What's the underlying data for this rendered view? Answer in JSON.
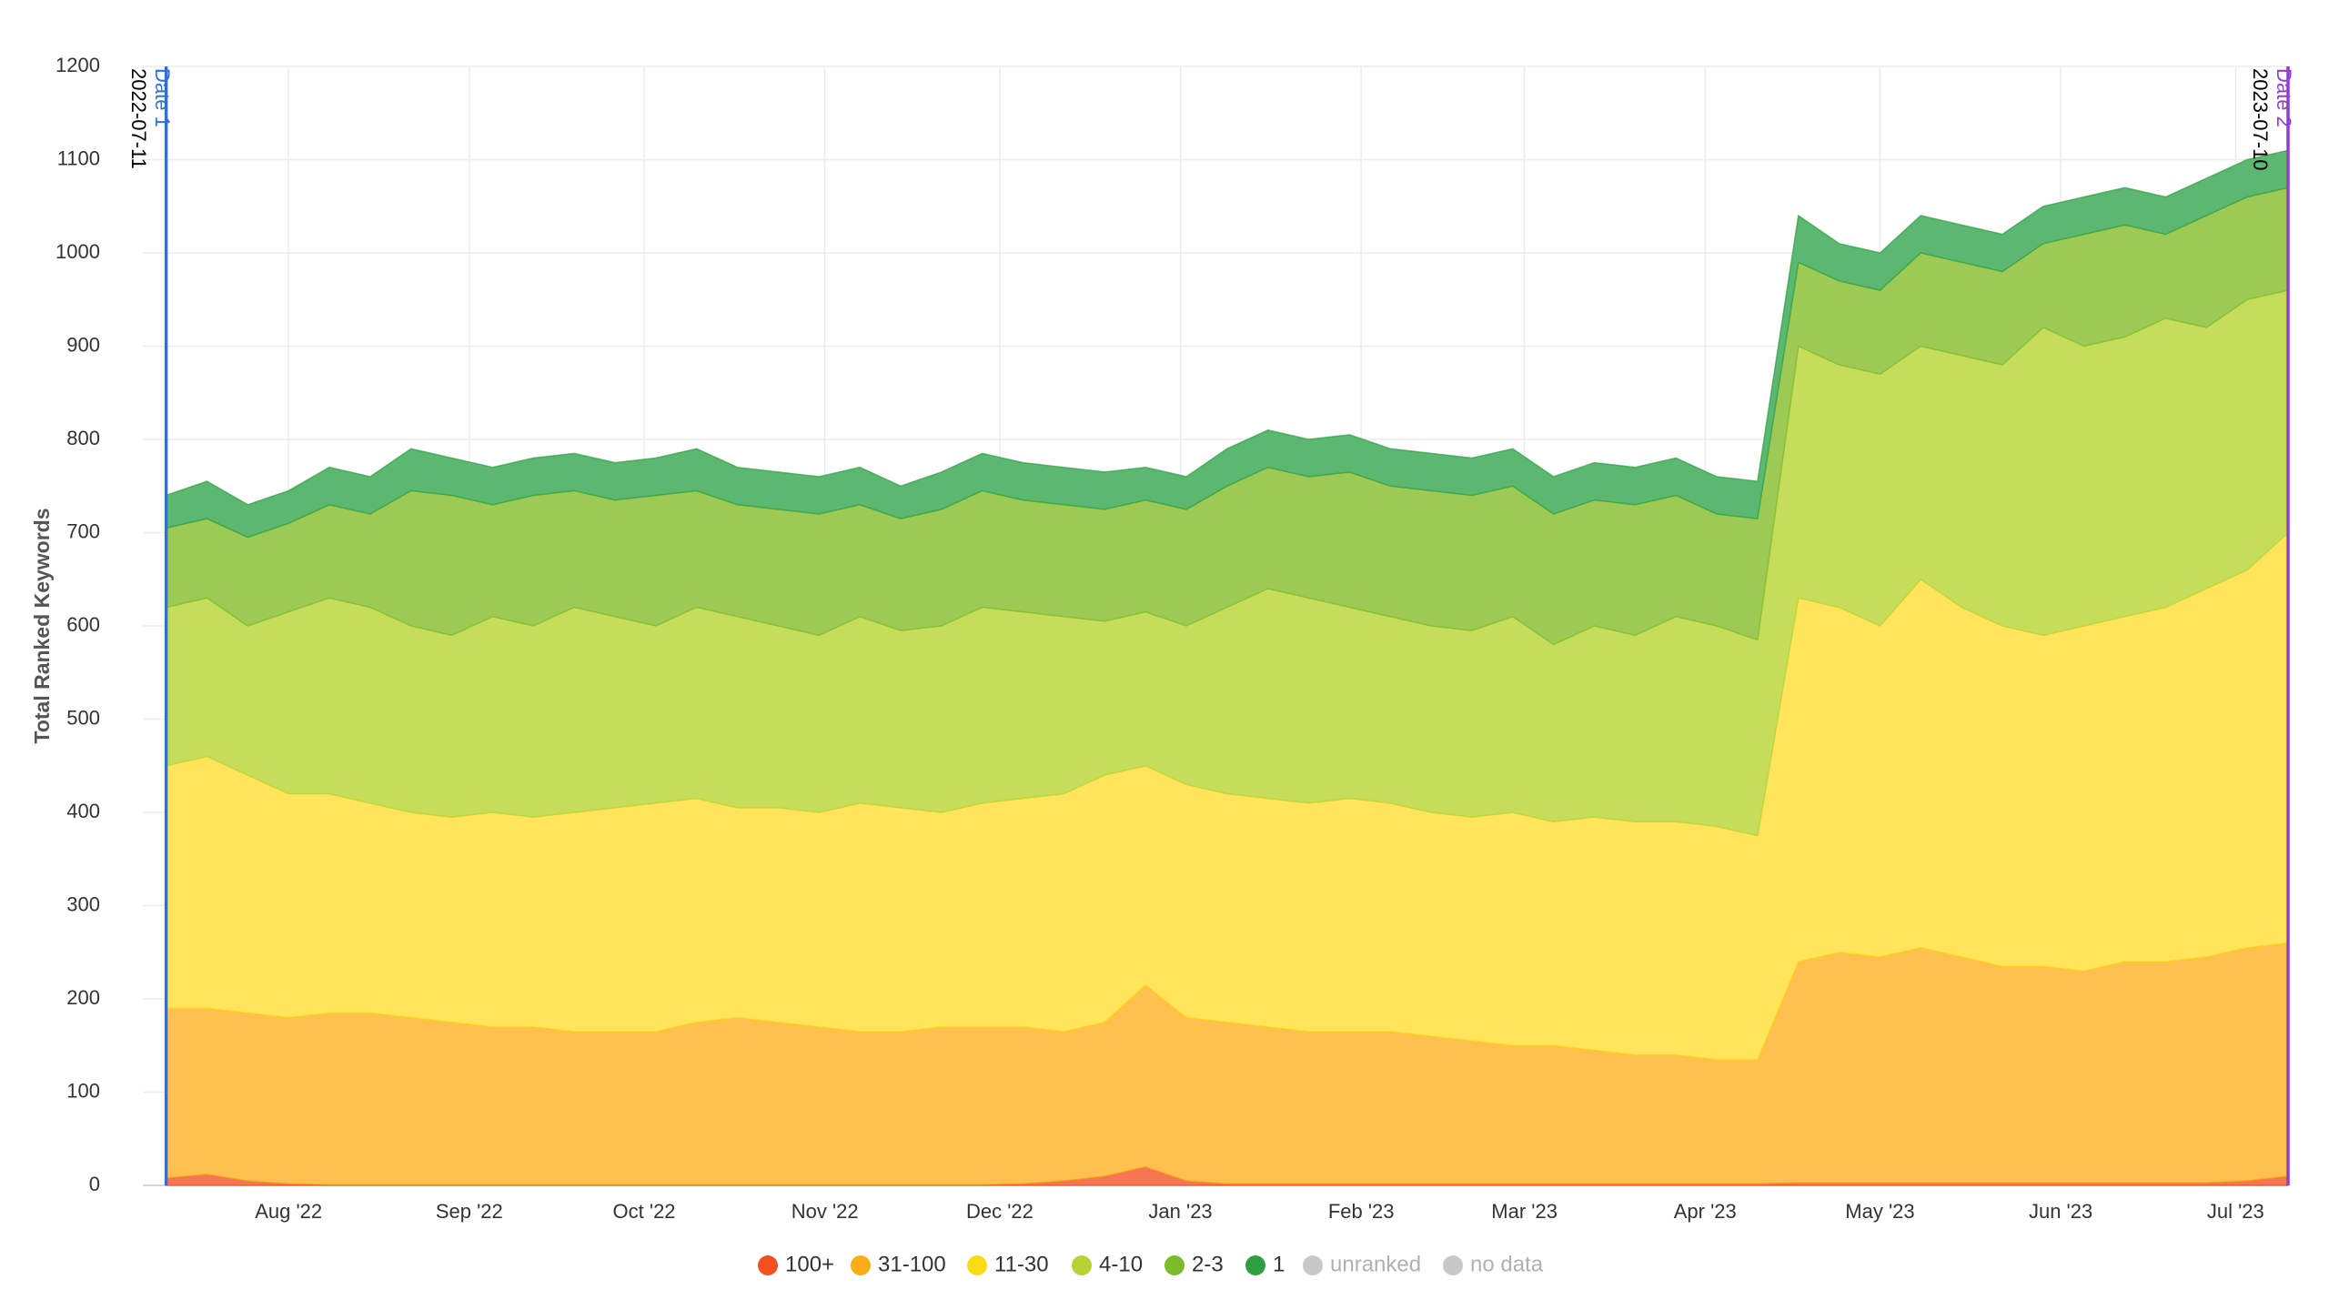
{
  "chart_data": {
    "type": "stacked-area",
    "y_label": "Total Ranked Keywords",
    "x": [
      "2022-07-11",
      "2022-07-18",
      "2022-07-25",
      "2022-08-01",
      "2022-08-08",
      "2022-08-15",
      "2022-08-22",
      "2022-08-29",
      "2022-09-05",
      "2022-09-12",
      "2022-09-19",
      "2022-09-26",
      "2022-10-03",
      "2022-10-10",
      "2022-10-17",
      "2022-10-24",
      "2022-10-31",
      "2022-11-07",
      "2022-11-14",
      "2022-11-21",
      "2022-11-28",
      "2022-12-05",
      "2022-12-12",
      "2022-12-19",
      "2022-12-26",
      "2023-01-02",
      "2023-01-09",
      "2023-01-16",
      "2023-01-23",
      "2023-01-30",
      "2023-02-06",
      "2023-02-13",
      "2023-02-20",
      "2023-02-27",
      "2023-03-06",
      "2023-03-13",
      "2023-03-20",
      "2023-03-27",
      "2023-04-03",
      "2023-04-10",
      "2023-04-17",
      "2023-04-24",
      "2023-05-01",
      "2023-05-08",
      "2023-05-15",
      "2023-05-22",
      "2023-05-29",
      "2023-06-05",
      "2023-06-12",
      "2023-06-19",
      "2023-06-26",
      "2023-07-03",
      "2023-07-10"
    ],
    "series": [
      {
        "name": "100+",
        "color": "#f4511e",
        "fill": "#f77552",
        "values": [
          8,
          12,
          5,
          2,
          1,
          1,
          1,
          1,
          1,
          1,
          1,
          1,
          1,
          1,
          1,
          1,
          1,
          1,
          1,
          1,
          1,
          2,
          5,
          10,
          20,
          5,
          2,
          2,
          2,
          2,
          2,
          2,
          2,
          2,
          2,
          2,
          2,
          2,
          2,
          2,
          3,
          3,
          3,
          3,
          3,
          3,
          3,
          3,
          3,
          3,
          3,
          5,
          10
        ]
      },
      {
        "name": "31-100",
        "color": "#faad14",
        "fill": "#ffc04f",
        "values": [
          182,
          178,
          180,
          178,
          184,
          184,
          179,
          174,
          169,
          169,
          164,
          164,
          164,
          174,
          179,
          174,
          169,
          164,
          164,
          169,
          169,
          168,
          160,
          165,
          195,
          175,
          173,
          168,
          163,
          163,
          163,
          158,
          153,
          148,
          148,
          143,
          138,
          138,
          133,
          133,
          237,
          247,
          242,
          252,
          242,
          232,
          232,
          227,
          237,
          237,
          242,
          250,
          250
        ]
      },
      {
        "name": "11-30",
        "color": "#fadb14",
        "fill": "#ffe45c",
        "values": [
          260,
          270,
          255,
          240,
          235,
          225,
          220,
          220,
          230,
          225,
          235,
          240,
          245,
          240,
          225,
          230,
          230,
          245,
          240,
          230,
          240,
          245,
          255,
          265,
          235,
          250,
          245,
          245,
          245,
          250,
          245,
          240,
          240,
          250,
          240,
          250,
          250,
          250,
          250,
          240,
          390,
          370,
          355,
          395,
          375,
          365,
          355,
          370,
          370,
          380,
          395,
          405,
          440
        ]
      },
      {
        "name": "4-10",
        "color": "#b5d334",
        "fill": "#c6dd5b",
        "values": [
          170,
          170,
          160,
          195,
          210,
          210,
          200,
          195,
          210,
          205,
          220,
          205,
          190,
          205,
          205,
          195,
          190,
          200,
          190,
          200,
          210,
          200,
          190,
          165,
          165,
          170,
          200,
          225,
          220,
          205,
          200,
          200,
          200,
          210,
          190,
          205,
          200,
          220,
          215,
          210,
          270,
          260,
          270,
          250,
          270,
          280,
          330,
          300,
          300,
          310,
          280,
          290,
          260
        ]
      },
      {
        "name": "2-3",
        "color": "#7cbb2a",
        "fill": "#9dca55",
        "values": [
          85,
          85,
          95,
          95,
          100,
          100,
          145,
          150,
          120,
          140,
          125,
          125,
          140,
          125,
          120,
          125,
          130,
          120,
          120,
          125,
          125,
          120,
          120,
          120,
          120,
          125,
          130,
          130,
          130,
          145,
          140,
          145,
          145,
          140,
          140,
          135,
          140,
          130,
          120,
          130,
          90,
          90,
          90,
          100,
          100,
          100,
          90,
          120,
          120,
          90,
          120,
          110,
          110
        ]
      },
      {
        "name": "1",
        "color": "#2ea043",
        "fill": "#5cb870",
        "values": [
          35,
          40,
          35,
          35,
          40,
          40,
          45,
          40,
          40,
          40,
          40,
          40,
          40,
          45,
          40,
          40,
          40,
          40,
          35,
          40,
          40,
          40,
          40,
          40,
          35,
          35,
          40,
          40,
          40,
          40,
          40,
          40,
          40,
          40,
          40,
          40,
          40,
          40,
          40,
          40,
          50,
          40,
          40,
          40,
          40,
          40,
          40,
          40,
          40,
          40,
          40,
          40,
          40
        ]
      }
    ],
    "legend_extra": [
      {
        "name": "unranked",
        "color": "#c8c8c8"
      },
      {
        "name": "no data",
        "color": "#c8c8c8"
      }
    ],
    "markers": [
      {
        "label": "Date 1",
        "date": "2022-07-11",
        "color": "#2f6fe0"
      },
      {
        "label": "Date 2",
        "date": "2023-07-10",
        "color": "#8e3fd1"
      }
    ],
    "xlim": [
      "2022-07-07",
      "2023-07-10"
    ],
    "xticks": [
      {
        "value": "2022-08-01",
        "label": "Aug '22"
      },
      {
        "value": "2022-09-01",
        "label": "Sep '22"
      },
      {
        "value": "2022-10-01",
        "label": "Oct '22"
      },
      {
        "value": "2022-11-01",
        "label": "Nov '22"
      },
      {
        "value": "2022-12-01",
        "label": "Dec '22"
      },
      {
        "value": "2023-01-01",
        "label": "Jan '23"
      },
      {
        "value": "2023-02-01",
        "label": "Feb '23"
      },
      {
        "value": "2023-03-01",
        "label": "Mar '23"
      },
      {
        "value": "2023-04-01",
        "label": "Apr '23"
      },
      {
        "value": "2023-05-01",
        "label": "May '23"
      },
      {
        "value": "2023-06-01",
        "label": "Jun '23"
      },
      {
        "value": "2023-07-01",
        "label": "Jul '23"
      }
    ],
    "ylim": [
      0,
      1200
    ],
    "yticks": [
      0,
      100,
      200,
      300,
      400,
      500,
      600,
      700,
      800,
      900,
      1000,
      1100,
      1200
    ],
    "grid": true
  }
}
